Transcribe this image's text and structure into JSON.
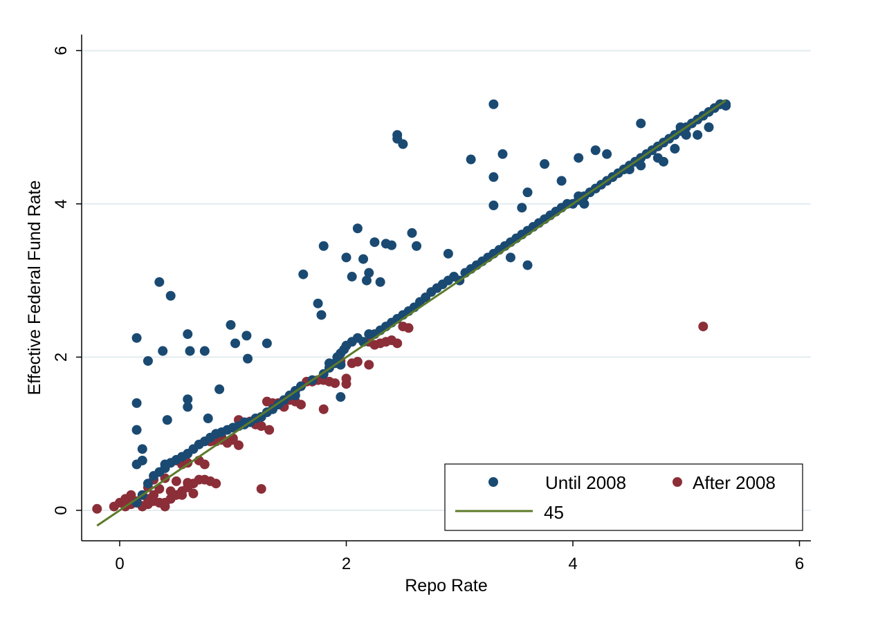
{
  "chart_data": {
    "type": "scatter",
    "title": "",
    "xlabel": "Repo Rate",
    "ylabel": "Effective Federal Fund Rate",
    "xlim": [
      -0.3,
      6.1
    ],
    "ylim": [
      -0.4,
      6.1
    ],
    "x_ticks": [
      "0",
      "2",
      "4",
      "6"
    ],
    "y_ticks": [
      "0",
      "2",
      "4",
      "6"
    ],
    "grid": "horizontal",
    "legend": {
      "placement": "bottom-right"
    },
    "colors": {
      "until": "#1a4a72",
      "after": "#8b2e38",
      "line": "#5c7a2a",
      "grid": "#e3ecef"
    },
    "series": [
      {
        "name": "Until 2008",
        "type": "scatter",
        "x": [
          0.15,
          0.2,
          0.25,
          0.3,
          0.35,
          0.4,
          0.45,
          0.5,
          0.55,
          0.6,
          0.65,
          0.7,
          0.75,
          0.8,
          0.85,
          0.9,
          0.95,
          1.0,
          1.05,
          1.1,
          1.15,
          1.2,
          1.25,
          1.3,
          1.35,
          1.4,
          1.45,
          1.5,
          1.55,
          1.6,
          1.7,
          1.8,
          1.85,
          1.9,
          1.92,
          1.95,
          1.98,
          2.0,
          2.05,
          2.1,
          2.15,
          2.2,
          2.25,
          2.3,
          2.35,
          2.4,
          2.45,
          2.5,
          2.55,
          2.6,
          2.65,
          2.7,
          2.75,
          2.8,
          2.85,
          2.9,
          2.95,
          3.0,
          3.05,
          3.1,
          3.15,
          3.2,
          3.25,
          3.3,
          3.35,
          3.4,
          3.45,
          3.5,
          3.55,
          3.6,
          3.65,
          3.7,
          3.75,
          3.8,
          3.85,
          3.9,
          3.95,
          4.0,
          4.05,
          4.1,
          4.15,
          4.2,
          4.25,
          4.3,
          4.35,
          4.4,
          4.45,
          4.5,
          4.55,
          4.6,
          4.65,
          4.7,
          4.75,
          4.8,
          4.85,
          4.9,
          4.95,
          5.0,
          5.05,
          5.1,
          5.15,
          5.2,
          5.25,
          5.3,
          5.35,
          0.15,
          0.15,
          0.15,
          0.2,
          0.25,
          0.35,
          0.38,
          0.42,
          0.45,
          0.6,
          0.62,
          0.6,
          0.75,
          0.78,
          0.88,
          0.98,
          1.02,
          1.12,
          1.13,
          1.3,
          1.1,
          0.2,
          0.15,
          0.4,
          0.6,
          1.62,
          1.8,
          1.75,
          1.78,
          1.95,
          2.0,
          2.05,
          2.1,
          2.15,
          2.18,
          2.3,
          2.2,
          2.25,
          2.35,
          2.4,
          2.45,
          2.5,
          2.58,
          2.62,
          2.45,
          3.1,
          3.3,
          3.38,
          3.45,
          2.9,
          3.6,
          3.75,
          3.9,
          4.05,
          4.2,
          4.1,
          4.05,
          4.35,
          4.45,
          4.5,
          4.6,
          4.75,
          4.9,
          5.0,
          5.1,
          5.2,
          5.3,
          4.95,
          5.35,
          3.6,
          4.8,
          3.55,
          3.3,
          1.85,
          1.95,
          1.55,
          3.3,
          4.6,
          4.3
        ],
        "y": [
          0.1,
          0.2,
          0.35,
          0.45,
          0.5,
          0.55,
          0.62,
          0.66,
          0.7,
          0.74,
          0.8,
          0.86,
          0.9,
          0.95,
          1.0,
          1.02,
          1.05,
          1.08,
          1.1,
          1.12,
          1.15,
          1.2,
          1.22,
          1.28,
          1.32,
          1.38,
          1.44,
          1.5,
          1.56,
          1.62,
          1.7,
          1.78,
          1.86,
          1.92,
          2.0,
          2.05,
          2.1,
          2.15,
          2.2,
          2.25,
          2.2,
          2.3,
          2.3,
          2.35,
          2.4,
          2.45,
          2.5,
          2.55,
          2.6,
          2.65,
          2.72,
          2.78,
          2.85,
          2.9,
          2.95,
          3.0,
          3.05,
          3.0,
          3.1,
          3.15,
          3.2,
          3.25,
          3.3,
          3.35,
          3.4,
          3.45,
          3.5,
          3.55,
          3.6,
          3.65,
          3.7,
          3.75,
          3.8,
          3.85,
          3.9,
          3.95,
          4.0,
          4.0,
          4.05,
          4.1,
          4.15,
          4.2,
          4.25,
          4.3,
          4.35,
          4.4,
          4.45,
          4.5,
          4.55,
          4.6,
          4.65,
          4.7,
          4.75,
          4.8,
          4.85,
          4.9,
          4.95,
          5.0,
          5.05,
          5.1,
          5.15,
          5.2,
          5.25,
          5.3,
          5.3,
          2.25,
          1.4,
          1.05,
          0.8,
          1.95,
          2.98,
          2.08,
          1.18,
          2.8,
          2.3,
          2.08,
          1.45,
          2.08,
          1.2,
          1.58,
          2.42,
          2.18,
          2.28,
          1.98,
          2.18,
          1.15,
          0.65,
          0.6,
          0.6,
          1.35,
          3.08,
          3.45,
          2.7,
          2.55,
          1.48,
          3.3,
          3.05,
          3.68,
          3.28,
          3.0,
          2.98,
          3.1,
          3.5,
          3.48,
          3.46,
          4.9,
          4.78,
          3.62,
          3.45,
          4.85,
          4.58,
          4.35,
          4.65,
          3.3,
          3.35,
          4.15,
          4.52,
          4.3,
          4.6,
          4.7,
          4.0,
          4.1,
          4.35,
          4.45,
          4.45,
          4.5,
          4.6,
          4.72,
          4.9,
          4.9,
          5.0,
          5.3,
          5.0,
          5.28,
          3.2,
          4.55,
          3.95,
          3.98,
          1.92,
          1.9,
          1.5,
          5.3,
          5.05,
          4.65
        ]
      },
      {
        "name": "After 2008",
        "type": "scatter",
        "x": [
          -0.2,
          -0.05,
          0.0,
          0.05,
          0.1,
          0.15,
          0.2,
          0.25,
          0.3,
          0.35,
          0.4,
          0.45,
          0.5,
          0.55,
          0.6,
          0.65,
          0.7,
          0.75,
          0.8,
          0.85,
          0.3,
          0.4,
          0.5,
          0.6,
          0.25,
          0.35,
          0.45,
          0.55,
          0.65,
          0.15,
          0.25,
          0.35,
          0.05,
          0.1,
          0.2,
          0.3,
          0.4,
          0.5,
          0.55,
          0.6,
          0.7,
          0.75,
          0.8,
          0.85,
          0.9,
          0.95,
          1.0,
          1.05,
          0.8,
          0.9,
          1.0,
          1.1,
          1.2,
          1.25,
          1.15,
          1.05,
          1.3,
          1.4,
          1.5,
          1.6,
          1.45,
          1.35,
          1.55,
          1.7,
          1.8,
          1.9,
          2.0,
          1.85,
          1.95,
          2.05,
          1.75,
          1.65,
          2.1,
          2.2,
          2.3,
          2.4,
          2.5,
          2.25,
          2.35,
          2.45,
          2.55,
          2.0,
          1.95,
          2.2,
          1.8,
          1.25,
          1.32,
          5.15
        ],
        "y": [
          0.02,
          0.05,
          0.1,
          0.15,
          0.2,
          0.1,
          0.05,
          0.15,
          0.2,
          0.1,
          0.05,
          0.15,
          0.2,
          0.25,
          0.3,
          0.35,
          0.4,
          0.4,
          0.38,
          0.35,
          0.4,
          0.42,
          0.38,
          0.36,
          0.3,
          0.28,
          0.25,
          0.2,
          0.22,
          0.12,
          0.08,
          0.1,
          0.05,
          0.08,
          0.06,
          0.12,
          0.1,
          0.65,
          0.6,
          0.62,
          0.65,
          0.6,
          0.92,
          0.9,
          0.95,
          0.88,
          0.92,
          0.85,
          0.9,
          0.92,
          0.94,
          1.15,
          1.12,
          1.1,
          1.16,
          1.18,
          1.42,
          1.4,
          1.44,
          1.38,
          1.35,
          1.4,
          1.42,
          1.68,
          1.7,
          1.66,
          1.72,
          1.68,
          1.95,
          1.92,
          1.7,
          1.68,
          1.94,
          2.2,
          2.18,
          2.22,
          2.4,
          2.16,
          2.2,
          2.18,
          2.38,
          1.65,
          1.9,
          1.9,
          1.32,
          0.28,
          1.05,
          2.4
        ]
      },
      {
        "name": "45",
        "type": "line",
        "x": [
          -0.2,
          5.35
        ],
        "y": [
          -0.2,
          5.35
        ]
      }
    ]
  }
}
